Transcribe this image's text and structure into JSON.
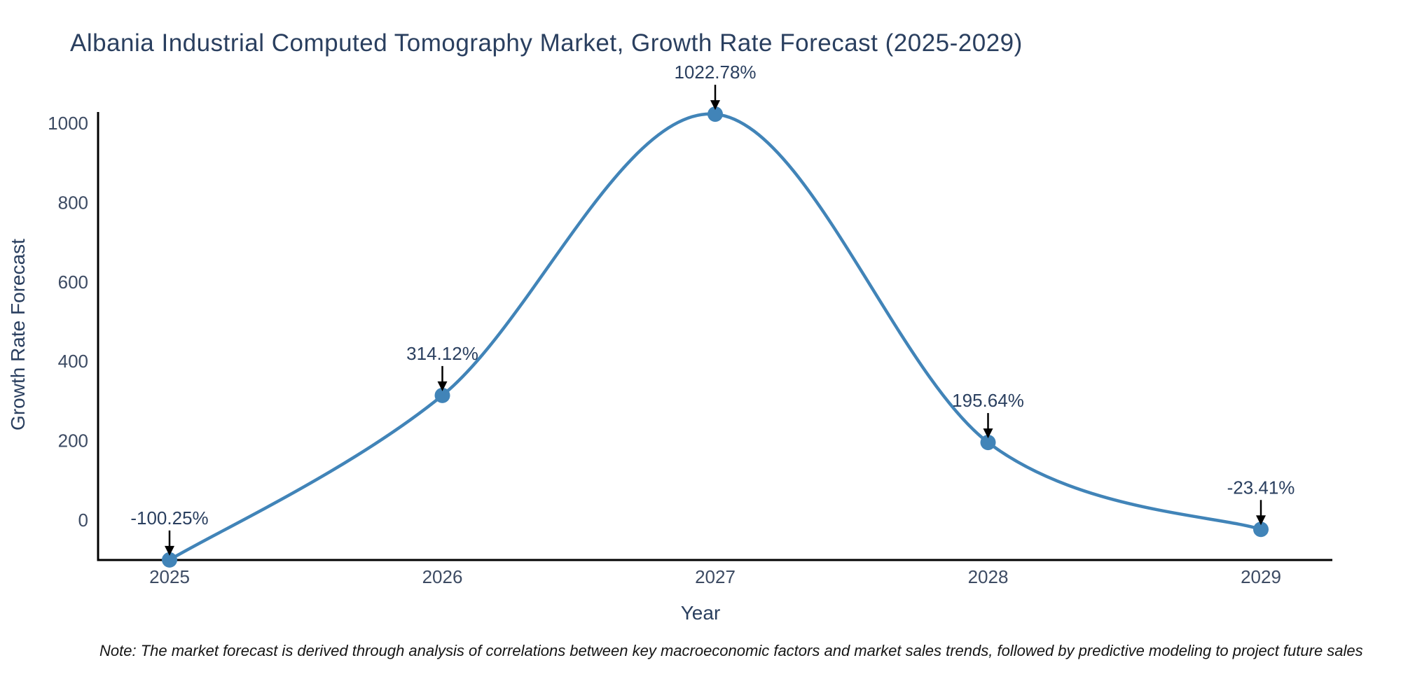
{
  "header": {
    "title": "Albania Industrial Computed Tomography Market, Growth Rate Forecast (2025-2029)"
  },
  "axes": {
    "x_label": "Year",
    "y_label": "Growth Rate Forecast",
    "x_ticks": [
      "2025",
      "2026",
      "2027",
      "2028",
      "2029"
    ],
    "y_ticks": [
      "0",
      "200",
      "400",
      "600",
      "800",
      "1000"
    ]
  },
  "footnote": "Note: The market forecast is derived through analysis of correlations between key macroeconomic factors and market sales trends, followed by predictive modeling to project future sales",
  "colors": {
    "background": "#ffffff",
    "line": "#4184b8",
    "marker": "#4184b8",
    "axis": "#000000",
    "arrow": "#000000",
    "title_text": "#2a3f5f",
    "axis_label_text": "#2a3f5f",
    "tick_text": "#3d4b63",
    "annotation_text": "#2a3f5f",
    "note_text": "#151515"
  },
  "chart_data": {
    "type": "line",
    "title": "Albania Industrial Computed Tomography Market, Growth Rate Forecast (2025-2029)",
    "x": [
      2025,
      2026,
      2027,
      2028,
      2029
    ],
    "series": [
      {
        "name": "Growth Rate Forecast",
        "values": [
          -100.25,
          314.12,
          1022.78,
          195.64,
          -23.41
        ]
      }
    ],
    "point_labels": [
      "-100.25%",
      "314.12%",
      "1022.78%",
      "195.64%",
      "-23.41%"
    ],
    "xlabel": "Year",
    "ylabel": "Growth Rate Forecast",
    "yticks": [
      0,
      200,
      400,
      600,
      800,
      1000
    ],
    "ylim": [
      -100.5,
      1028
    ],
    "xlim": [
      2024.74,
      2029.26
    ],
    "curve": "spline",
    "markers": true,
    "grid": false,
    "legend": false,
    "annotations": "value label with downward arrow above each data point"
  }
}
